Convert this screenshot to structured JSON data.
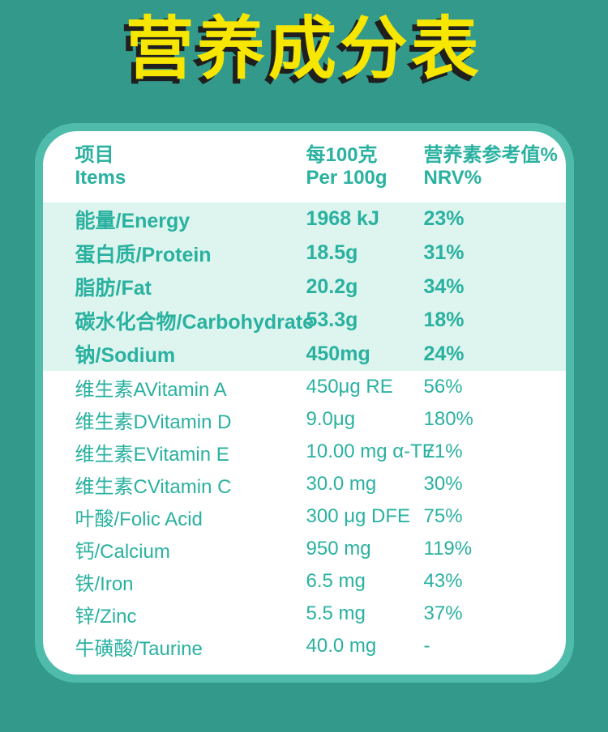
{
  "title": "营养成分表",
  "table": {
    "header": {
      "col1_zh": "项目",
      "col1_en": "Items",
      "col2_zh": "每100克",
      "col2_en": "Per 100g",
      "col3_zh": "营养素参考值%",
      "col3_en": "NRV%"
    },
    "highlight_rows": [
      {
        "item": "能量/Energy",
        "amount": "1968 kJ",
        "nrv": "23%"
      },
      {
        "item": "蛋白质/Protein",
        "amount": "18.5g",
        "nrv": "31%"
      },
      {
        "item": "脂肪/Fat",
        "amount": "20.2g",
        "nrv": "34%"
      },
      {
        "item": "碳水化合物/Carbohydrate",
        "amount": "53.3g",
        "nrv": "18%"
      },
      {
        "item": "钠/Sodium",
        "amount": "450mg",
        "nrv": "24%"
      }
    ],
    "rows": [
      {
        "item": "维生素AVitamin A",
        "amount": "450μg RE",
        "nrv": "56%"
      },
      {
        "item": "维生素DVitamin D",
        "amount": "9.0μg",
        "nrv": "180%"
      },
      {
        "item": "维生素EVitamin E",
        "amount": "10.00 mg α-TE",
        "nrv": "71%"
      },
      {
        "item": "维生素CVitamin C",
        "amount": "30.0 mg",
        "nrv": "30%"
      },
      {
        "item": "叶酸/Folic Acid",
        "amount": "300 μg DFE",
        "nrv": "75%"
      },
      {
        "item": "钙/Calcium",
        "amount": "950 mg",
        "nrv": "119%"
      },
      {
        "item": "铁/Iron",
        "amount": "6.5 mg",
        "nrv": "43%"
      },
      {
        "item": "锌/Zinc",
        "amount": "5.5 mg",
        "nrv": "37%"
      },
      {
        "item": "牛磺酸/Taurine",
        "amount": "40.0 mg",
        "nrv": "-"
      }
    ]
  },
  "colors": {
    "background": "#33998A",
    "card_border": "#4FBCAB",
    "card_bg": "#FFFFFF",
    "highlight_bg": "#DDF5EE",
    "text_teal": "#2AB1A0",
    "title_yellow": "#F7E600",
    "title_shadow": "#1F1F1F"
  }
}
